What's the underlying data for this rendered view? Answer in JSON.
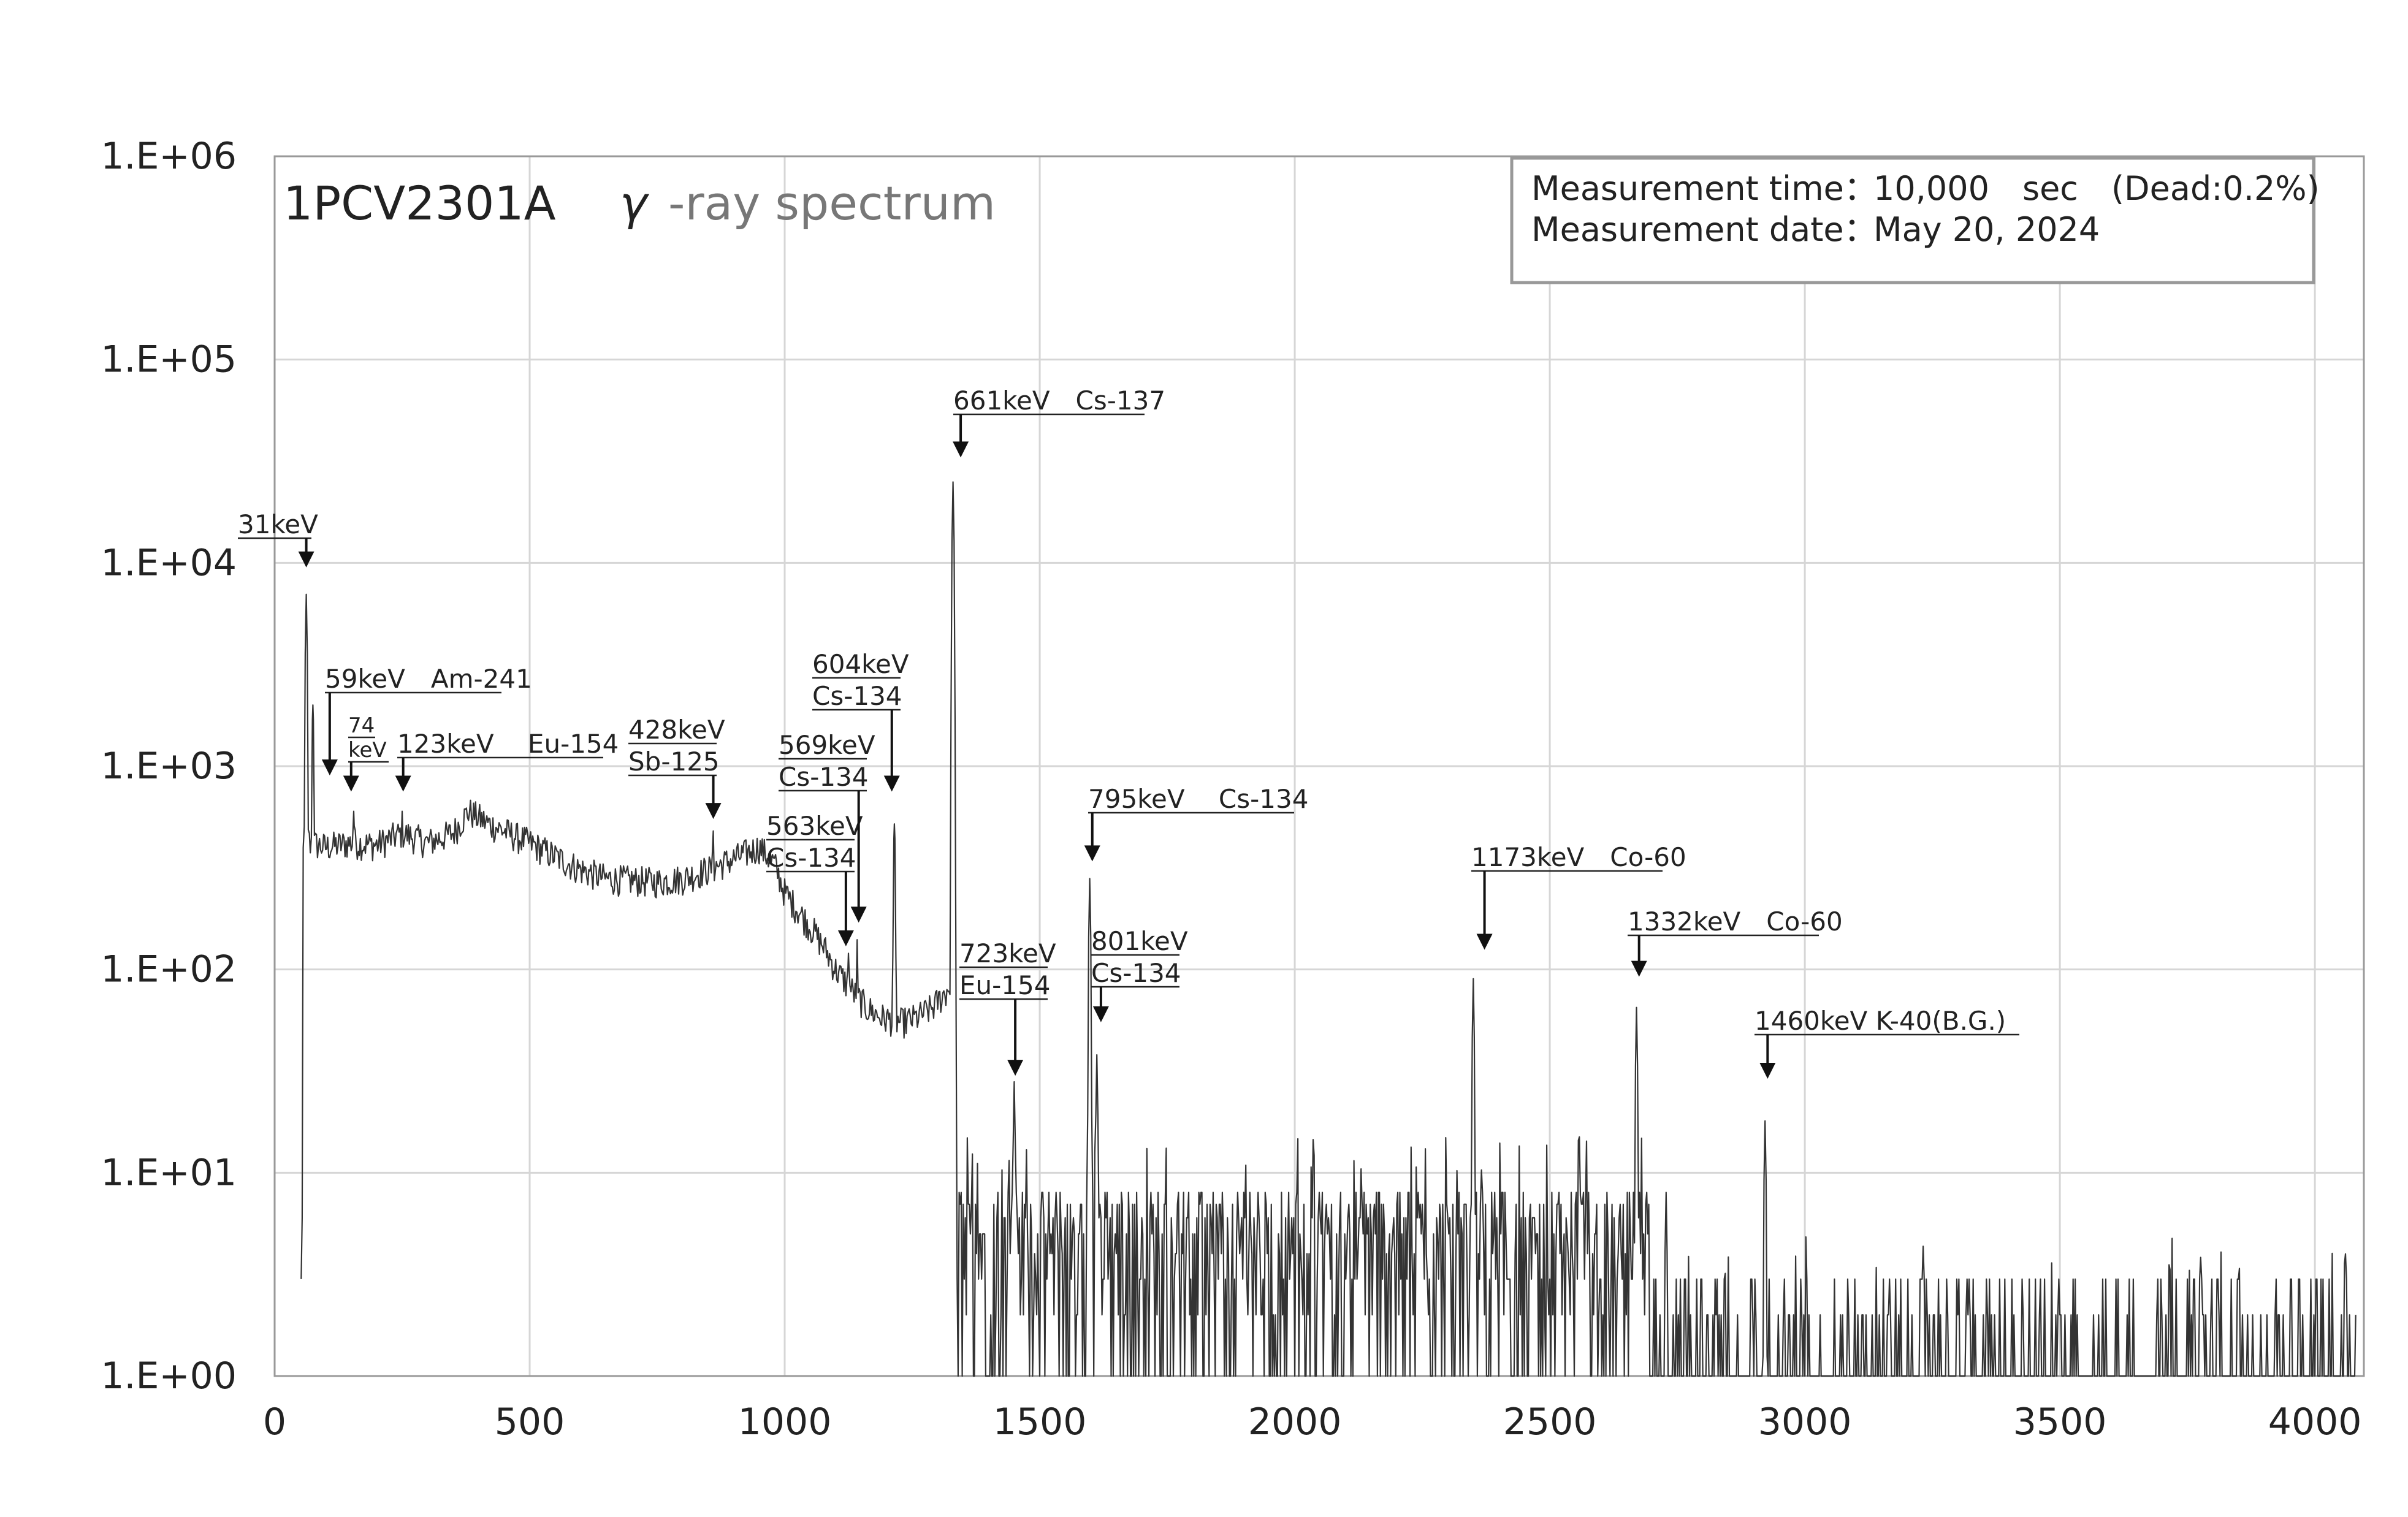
{
  "chart_data": {
    "type": "line",
    "title": "1PCV2301A",
    "title_gamma": "γ",
    "title_suffix": "-ray spectrum",
    "info": {
      "time_label": "Measurement time：",
      "time_value": "10,000　sec　(Dead:0.2%)",
      "date_label": "Measurement date：",
      "date_value": "May 20, 2024"
    },
    "xlim": [
      0,
      4096
    ],
    "ylim": [
      1,
      1000000
    ],
    "y_scale": "log",
    "grid": true,
    "x_ticks": [
      0,
      500,
      1000,
      1500,
      2000,
      2500,
      3000,
      3500,
      4000
    ],
    "x_tick_labels": [
      "0",
      "500",
      "1000",
      "1500",
      "2000",
      "2500",
      "3000",
      "3500",
      "4000"
    ],
    "y_ticks": [
      1,
      10,
      100,
      1000,
      10000,
      100000,
      1000000
    ],
    "y_tick_labels": [
      "1.E+00",
      "1.E+01",
      "1.E+02",
      "1.E+03",
      "1.E+04",
      "1.E+05",
      "1.E+06"
    ],
    "series": [
      {
        "color": "#333333",
        "continuum": [
          [
            55,
            450
          ],
          [
            70,
            420
          ],
          [
            100,
            400
          ],
          [
            150,
            420
          ],
          [
            200,
            410
          ],
          [
            250,
            470
          ],
          [
            300,
            420
          ],
          [
            350,
            470
          ],
          [
            380,
            600
          ],
          [
            420,
            520
          ],
          [
            500,
            420
          ],
          [
            550,
            360
          ],
          [
            600,
            310
          ],
          [
            650,
            280
          ],
          [
            700,
            275
          ],
          [
            750,
            270
          ],
          [
            800,
            280
          ],
          [
            850,
            310
          ],
          [
            900,
            350
          ],
          [
            950,
            400
          ],
          [
            980,
            330
          ],
          [
            1000,
            240
          ],
          [
            1030,
            190
          ],
          [
            1060,
            150
          ],
          [
            1080,
            125
          ],
          [
            1100,
            100
          ],
          [
            1130,
            80
          ],
          [
            1160,
            65
          ],
          [
            1190,
            58
          ],
          [
            1230,
            55
          ],
          [
            1260,
            58
          ],
          [
            1290,
            65
          ],
          [
            1320,
            80
          ],
          [
            1330,
            90
          ]
        ],
        "peaks": [
          [
            62,
            7000
          ],
          [
            75,
            2000
          ],
          [
            155,
            600
          ],
          [
            250,
            600
          ],
          [
            860,
            480
          ],
          [
            1125,
            120
          ],
          [
            1142,
            140
          ],
          [
            1215,
            520
          ],
          [
            1330,
            25000
          ],
          [
            1450,
            28
          ],
          [
            1598,
            280
          ],
          [
            1612,
            38
          ],
          [
            2350,
            90
          ],
          [
            2558,
            15
          ],
          [
            2670,
            65
          ],
          [
            2728,
            8
          ],
          [
            2922,
            18
          ]
        ]
      }
    ],
    "annotations": [
      {
        "lines": [
          "31keV"
        ],
        "channel": 62,
        "arrow_tip": 9500
      },
      {
        "lines": [
          "59keV　Am-241"
        ],
        "channel": 108,
        "arrow_tip": 900
      },
      {
        "lines": [
          "74",
          "keV"
        ],
        "channel": 150,
        "arrow_tip": 750
      },
      {
        "lines": [
          "123keV　 Eu-154"
        ],
        "channel": 252,
        "arrow_tip": 750
      },
      {
        "lines": [
          "428keV",
          "Sb-125"
        ],
        "channel": 860,
        "arrow_tip": 550
      },
      {
        "lines": [
          "563keV",
          "Cs-134"
        ],
        "channel": 1120,
        "arrow_tip": 130
      },
      {
        "lines": [
          "569keV",
          "Cs-134"
        ],
        "channel": 1145,
        "arrow_tip": 170
      },
      {
        "lines": [
          "604keV",
          "Cs-134"
        ],
        "channel": 1210,
        "arrow_tip": 750
      },
      {
        "lines": [
          "661keV　Cs-137"
        ],
        "channel": 1345,
        "arrow_tip": 33000
      },
      {
        "lines": [
          "723keV",
          "Eu-154"
        ],
        "channel": 1452,
        "arrow_tip": 30
      },
      {
        "lines": [
          "795keV　 Cs-134"
        ],
        "channel": 1603,
        "arrow_tip": 340
      },
      {
        "lines": [
          "801keV",
          "Cs-134"
        ],
        "channel": 1620,
        "arrow_tip": 55
      },
      {
        "lines": [
          "1173keV　Co-60"
        ],
        "channel": 2372,
        "arrow_tip": 125
      },
      {
        "lines": [
          "1332keV　Co-60"
        ],
        "channel": 2675,
        "arrow_tip": 92
      },
      {
        "lines": [
          "1460keV K-40(B.G.)"
        ],
        "channel": 2927,
        "arrow_tip": 29
      }
    ]
  }
}
